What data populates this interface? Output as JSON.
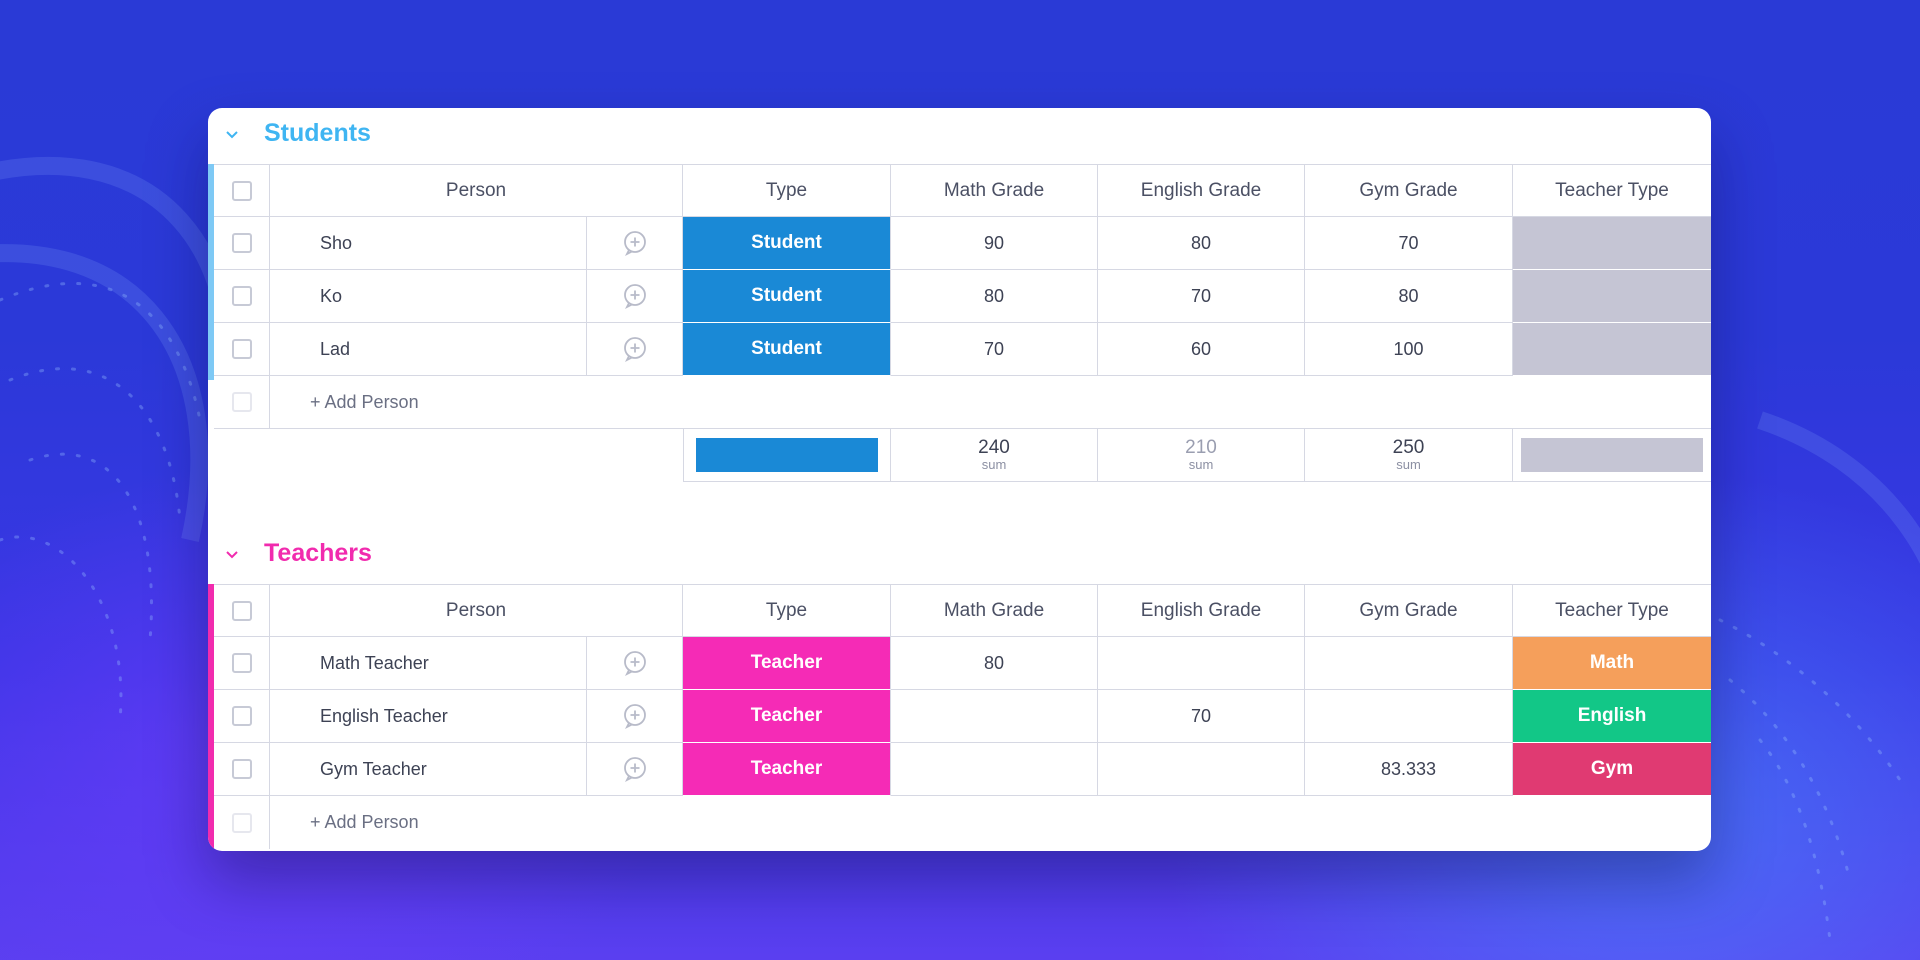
{
  "colors": {
    "students_group": "#3fb5f2",
    "teachers_group": "#f12bae",
    "student_label": "#1a89d6",
    "teacher_label": "#f52bb6",
    "empty_label": "#c5c5d4",
    "math_label": "#f59f5b",
    "english_label": "#12c787",
    "gym_label": "#e03a72"
  },
  "columns": {
    "person": "Person",
    "type": "Type",
    "math": "Math Grade",
    "english": "English Grade",
    "gym": "Gym Grade",
    "teacher_type": "Teacher Type"
  },
  "students": {
    "title": "Students",
    "rows": [
      {
        "person": "Sho",
        "type": "Student",
        "math": "90",
        "english": "80",
        "gym": "70",
        "teacher_type": ""
      },
      {
        "person": "Ko",
        "type": "Student",
        "math": "80",
        "english": "70",
        "gym": "80",
        "teacher_type": ""
      },
      {
        "person": "Lad",
        "type": "Student",
        "math": "70",
        "english": "60",
        "gym": "100",
        "teacher_type": ""
      }
    ],
    "add_label": "+ Add Person",
    "summary": {
      "math": "240",
      "math_label": "sum",
      "english": "210",
      "english_label": "sum",
      "gym": "250",
      "gym_label": "sum"
    }
  },
  "teachers": {
    "title": "Teachers",
    "rows": [
      {
        "person": "Math Teacher",
        "type": "Teacher",
        "math": "80",
        "english": "",
        "gym": "",
        "teacher_type": "Math"
      },
      {
        "person": "English Teacher",
        "type": "Teacher",
        "math": "",
        "english": "70",
        "gym": "",
        "teacher_type": "English"
      },
      {
        "person": "Gym Teacher",
        "type": "Teacher",
        "math": "",
        "english": "",
        "gym": "83.333",
        "teacher_type": "Gym"
      }
    ],
    "add_label": "+ Add Person"
  }
}
